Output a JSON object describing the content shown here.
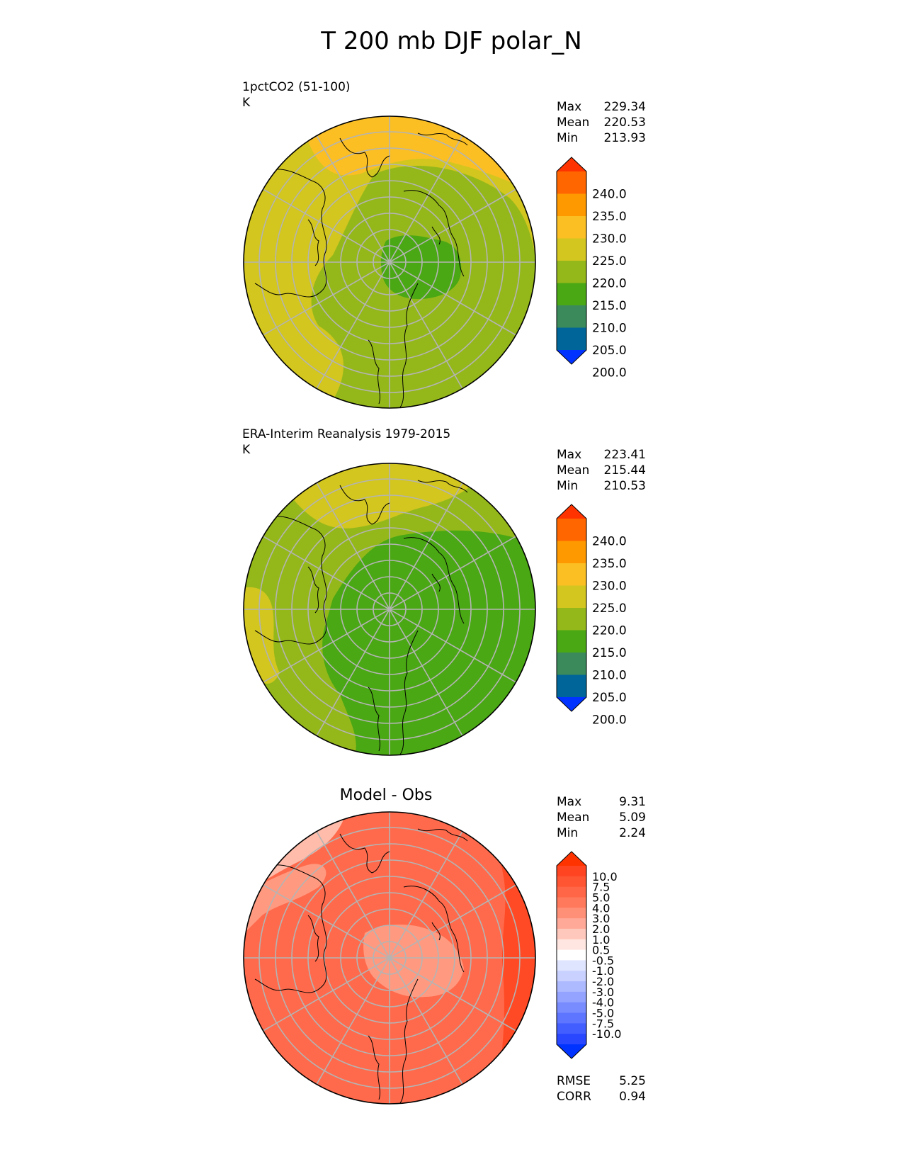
{
  "title": "T 200 mb DJF polar_N",
  "panels": [
    {
      "id": "model",
      "label_line1": "1pctCO2 (51-100)",
      "label_line2": "K",
      "stats": {
        "max_label": "Max",
        "max": "229.34",
        "mean_label": "Mean",
        "mean": "220.53",
        "min_label": "Min",
        "min": "213.93"
      }
    },
    {
      "id": "obs",
      "label_line1": "ERA-Interim Reanalysis 1979-2015",
      "label_line2": "K",
      "stats": {
        "max_label": "Max",
        "max": "223.41",
        "mean_label": "Mean",
        "mean": "215.44",
        "min_label": "Min",
        "min": "210.53"
      }
    },
    {
      "id": "diff",
      "title": "Model - Obs",
      "stats": {
        "max_label": "Max",
        "max": "9.31",
        "mean_label": "Mean",
        "mean": "5.09",
        "min_label": "Min",
        "min": "2.24"
      },
      "metrics": {
        "rmse_label": "RMSE",
        "rmse": "5.25",
        "corr_label": "CORR",
        "corr": "0.94"
      }
    }
  ],
  "colorbars": {
    "absolute": {
      "ticks": [
        "240.0",
        "235.0",
        "230.0",
        "225.0",
        "220.0",
        "215.0",
        "210.0",
        "205.0",
        "200.0"
      ],
      "colors_top_to_bottom": [
        "#ff3300",
        "#ff6600",
        "#ff9900",
        "#fbbf24",
        "#d2c61f",
        "#94b81a",
        "#4aa814",
        "#3a8a5c",
        "#006699",
        "#0033ff"
      ]
    },
    "difference": {
      "ticks": [
        "10.0",
        "7.5",
        "5.0",
        "4.0",
        "3.0",
        "2.0",
        "1.0",
        "0.5",
        "-0.5",
        "-1.0",
        "-2.0",
        "-3.0",
        "-4.0",
        "-5.0",
        "-7.5",
        "-10.0"
      ],
      "colors_top_to_bottom": [
        "#ff3300",
        "#ff4422",
        "#ff5533",
        "#ff6647",
        "#ff7a5c",
        "#ff9078",
        "#ffaa98",
        "#ffc8bd",
        "#ffe6e0",
        "#ffffff",
        "#dfe4ff",
        "#c8d1ff",
        "#adbaff",
        "#93a3ff",
        "#788cff",
        "#5e75ff",
        "#435eff",
        "#2847ff",
        "#0033ff"
      ]
    }
  },
  "map_colors": {
    "orange_225_230": "#fbbf24",
    "yellow_220_225": "#d2c61f",
    "olive_215_220": "#94b81a",
    "green_210_215": "#4aa814",
    "diff_dark": "#ff4a25",
    "diff_mid": "#ff6a4c",
    "diff_light": "#ff9a80",
    "diff_lighter": "#ffbcaa",
    "grid": "#b4b4b4",
    "coast": "#000000"
  }
}
